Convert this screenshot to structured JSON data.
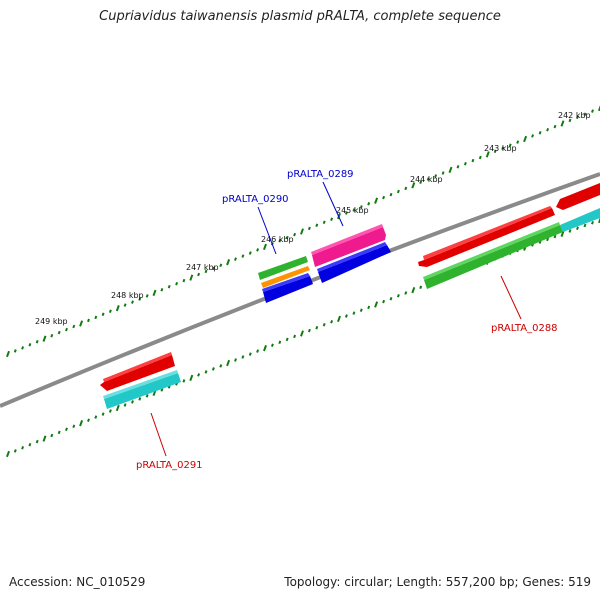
{
  "title": "Cupriavidus taiwanensis plasmid pRALTA, complete sequence",
  "footer": {
    "accession": "Accession: NC_010529",
    "stats": "Topology: circular; Length: 557,200 bp; Genes: 519"
  },
  "scale_labels": [
    "242 kbp",
    "243 kbp",
    "244 kbp",
    "245 kbp",
    "246 kbp",
    "247 kbp",
    "248 kbp",
    "249 kbp"
  ],
  "genes": [
    {
      "label": "pRALTA_0289",
      "color": "#0000cc"
    },
    {
      "label": "pRALTA_0290",
      "color": "#0000cc"
    },
    {
      "label": "pRALTA_0288",
      "color": "#cc0000"
    },
    {
      "label": "pRALTA_0291",
      "color": "#cc0000"
    }
  ],
  "colors": {
    "backbone": "#808080",
    "ticks": "#117a11",
    "red": "#ff0000",
    "cyan": "#22cccc",
    "green": "#33bb33",
    "magenta": "#ff2299",
    "blue": "#0000ee",
    "orange": "#ff9900"
  }
}
